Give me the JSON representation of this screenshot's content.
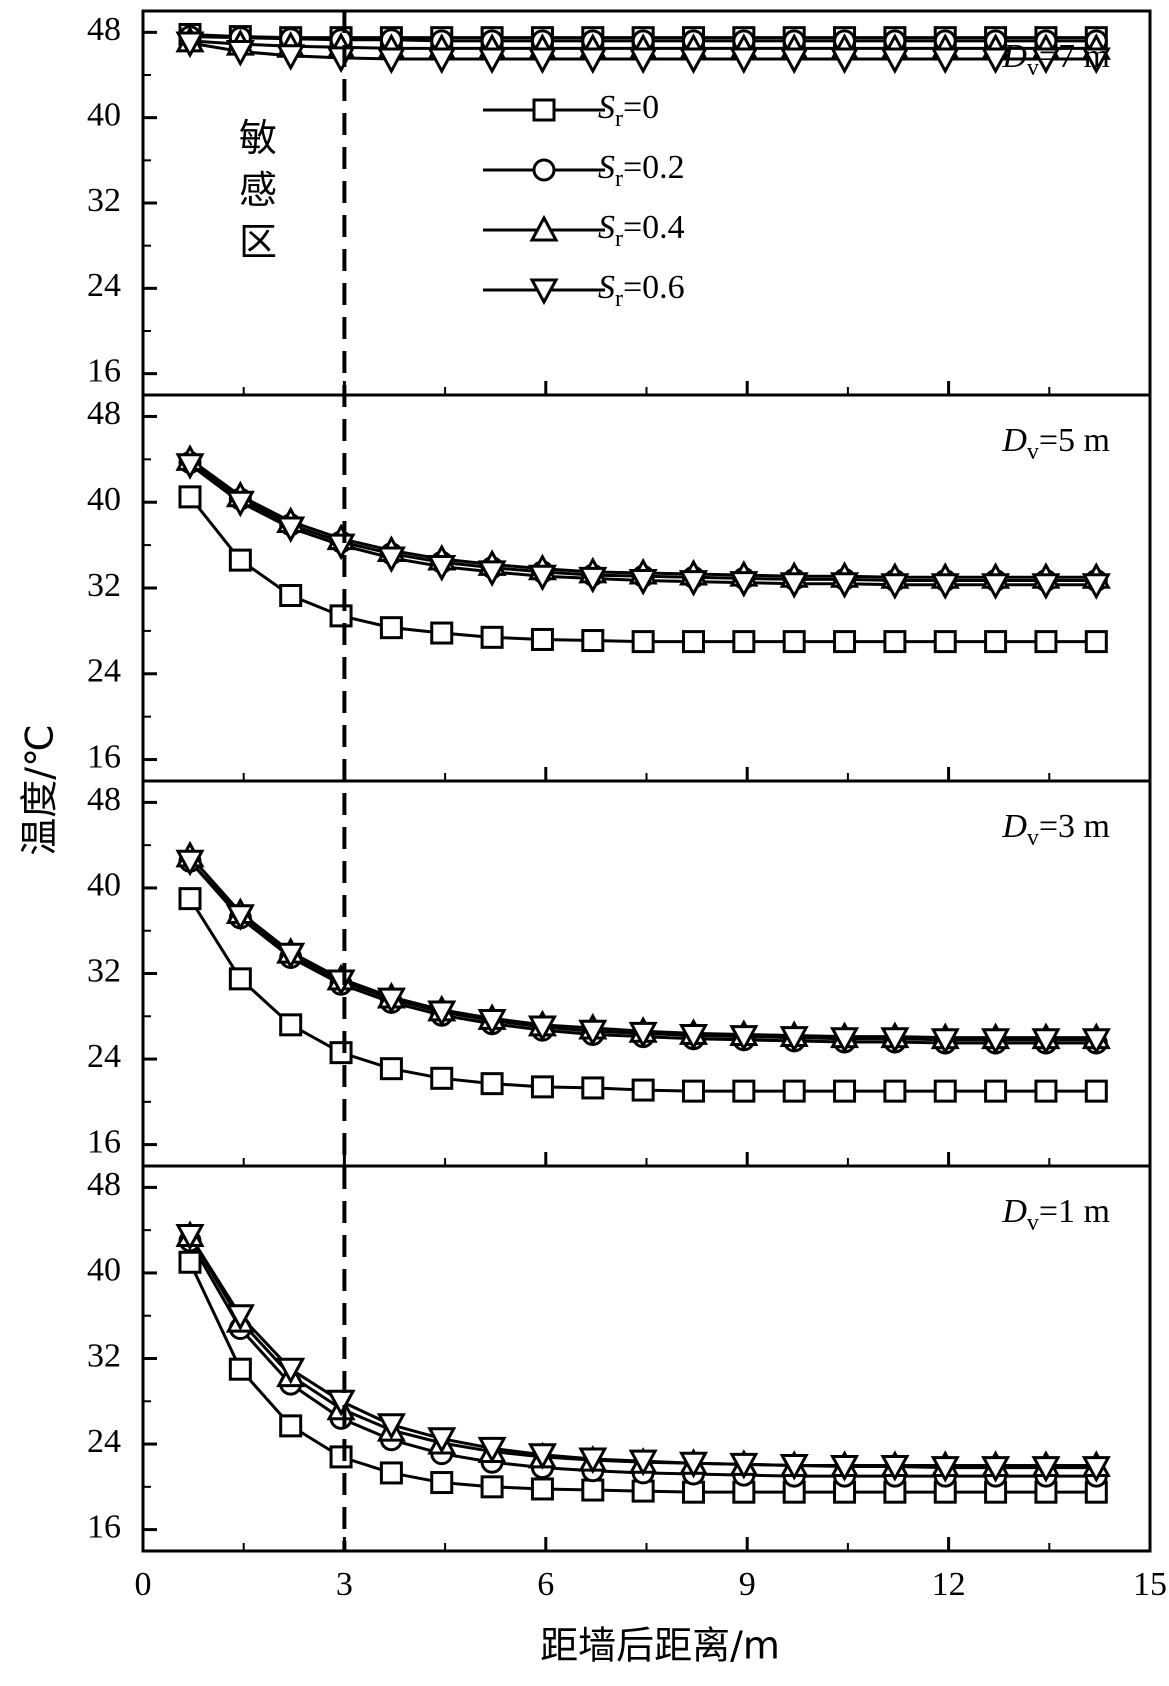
{
  "chart_data": [
    {
      "type": "line",
      "annotation": "Dv=7 m",
      "xlim": [
        0,
        15
      ],
      "xticks": [
        0,
        3,
        6,
        9,
        12,
        15
      ],
      "ylim": [
        14,
        50
      ],
      "yticks": [
        16,
        24,
        32,
        40,
        48
      ],
      "x": [
        0.7,
        1.45,
        2.2,
        2.95,
        3.7,
        4.45,
        5.2,
        5.95,
        6.7,
        7.45,
        8.2,
        8.95,
        9.7,
        10.45,
        11.2,
        11.95,
        12.7,
        13.45,
        14.2
      ],
      "series": [
        {
          "name": "Sr=0",
          "color": "#000000",
          "marker": "square",
          "values": [
            47.8,
            47.6,
            47.5,
            47.5,
            47.5,
            47.5,
            47.5,
            47.5,
            47.5,
            47.5,
            47.5,
            47.5,
            47.5,
            47.5,
            47.5,
            47.5,
            47.5,
            47.5,
            47.5
          ]
        },
        {
          "name": "Sr=0.2",
          "color": "#000000",
          "marker": "circle",
          "values": [
            47.6,
            47.5,
            47.4,
            47.3,
            47.3,
            47.2,
            47.2,
            47.2,
            47.2,
            47.2,
            47.2,
            47.2,
            47.2,
            47.2,
            47.2,
            47.2,
            47.2,
            47.2,
            47.2
          ]
        },
        {
          "name": "Sr=0.4",
          "color": "#000000",
          "marker": "triangle-up",
          "values": [
            47.2,
            46.9,
            46.7,
            46.6,
            46.5,
            46.5,
            46.5,
            46.5,
            46.5,
            46.5,
            46.5,
            46.5,
            46.5,
            46.5,
            46.5,
            46.5,
            46.5,
            46.5,
            46.5
          ]
        },
        {
          "name": "Sr=0.6",
          "color": "#000000",
          "marker": "triangle-down",
          "values": [
            47.0,
            46.2,
            45.8,
            45.6,
            45.5,
            45.5,
            45.5,
            45.5,
            45.5,
            45.5,
            45.5,
            45.5,
            45.5,
            45.5,
            45.5,
            45.5,
            45.5,
            45.5,
            45.5
          ]
        }
      ]
    },
    {
      "type": "line",
      "annotation": "Dv=5 m",
      "xlim": [
        0,
        15
      ],
      "xticks": [
        0,
        3,
        6,
        9,
        12,
        15
      ],
      "ylim": [
        14,
        50
      ],
      "yticks": [
        16,
        24,
        32,
        40,
        48
      ],
      "x": [
        0.7,
        1.45,
        2.2,
        2.95,
        3.7,
        4.45,
        5.2,
        5.95,
        6.7,
        7.45,
        8.2,
        8.95,
        9.7,
        10.45,
        11.2,
        11.95,
        12.7,
        13.45,
        14.2
      ],
      "series": [
        {
          "color": "#000000",
          "marker": "square",
          "values": [
            40.5,
            34.6,
            31.3,
            29.4,
            28.3,
            27.8,
            27.4,
            27.2,
            27.1,
            27.0,
            27.0,
            27.0,
            27.0,
            27.0,
            27.0,
            27.0,
            27.0,
            27.0,
            27.0
          ]
        },
        {
          "color": "#000000",
          "marker": "circle",
          "values": [
            43.7,
            40.3,
            37.9,
            36.3,
            35.2,
            34.4,
            33.9,
            33.5,
            33.2,
            33.1,
            33.0,
            32.9,
            32.8,
            32.8,
            32.7,
            32.7,
            32.7,
            32.7,
            32.7
          ]
        },
        {
          "color": "#000000",
          "marker": "triangle-up",
          "values": [
            44.0,
            40.6,
            38.2,
            36.6,
            35.5,
            34.7,
            34.2,
            33.8,
            33.5,
            33.4,
            33.3,
            33.2,
            33.1,
            33.1,
            33.0,
            33.0,
            33.0,
            33.0,
            33.0
          ]
        },
        {
          "color": "#000000",
          "marker": "triangle-down",
          "values": [
            43.5,
            40.0,
            37.6,
            36.0,
            34.8,
            34.0,
            33.5,
            33.1,
            32.9,
            32.7,
            32.6,
            32.5,
            32.4,
            32.4,
            32.3,
            32.3,
            32.3,
            32.3,
            32.3
          ]
        }
      ]
    },
    {
      "type": "line",
      "annotation": "Dv=3 m",
      "xlim": [
        0,
        15
      ],
      "xticks": [
        0,
        3,
        6,
        9,
        12,
        15
      ],
      "ylim": [
        14,
        50
      ],
      "yticks": [
        16,
        24,
        32,
        40,
        48
      ],
      "x": [
        0.7,
        1.45,
        2.2,
        2.95,
        3.7,
        4.45,
        5.2,
        5.95,
        6.7,
        7.45,
        8.2,
        8.95,
        9.7,
        10.45,
        11.2,
        11.95,
        12.7,
        13.45,
        14.2
      ],
      "series": [
        {
          "color": "#000000",
          "marker": "square",
          "values": [
            39.0,
            31.5,
            27.2,
            24.6,
            23.1,
            22.2,
            21.7,
            21.4,
            21.3,
            21.1,
            21.0,
            21.0,
            21.0,
            21.0,
            21.0,
            21.0,
            21.0,
            21.0,
            21.0
          ]
        },
        {
          "color": "#000000",
          "marker": "circle",
          "values": [
            42.5,
            37.2,
            33.5,
            31.0,
            29.3,
            28.1,
            27.3,
            26.7,
            26.3,
            26.1,
            25.9,
            25.8,
            25.7,
            25.6,
            25.6,
            25.5,
            25.5,
            25.5,
            25.5
          ]
        },
        {
          "color": "#000000",
          "marker": "triangle-up",
          "values": [
            43.0,
            37.7,
            34.0,
            31.5,
            29.8,
            28.6,
            27.8,
            27.2,
            26.9,
            26.6,
            26.4,
            26.3,
            26.2,
            26.1,
            26.1,
            26.0,
            26.0,
            26.0,
            26.0
          ]
        },
        {
          "color": "#000000",
          "marker": "triangle-down",
          "values": [
            42.5,
            37.4,
            33.8,
            31.3,
            29.6,
            28.4,
            27.6,
            27.0,
            26.6,
            26.4,
            26.2,
            26.1,
            26.0,
            25.9,
            25.9,
            25.8,
            25.8,
            25.8,
            25.8
          ]
        }
      ]
    },
    {
      "type": "line",
      "annotation": "Dv=1 m",
      "xlim": [
        0,
        15
      ],
      "xticks": [
        0,
        3,
        6,
        9,
        12,
        15
      ],
      "ylim": [
        14,
        50
      ],
      "yticks": [
        16,
        24,
        32,
        40,
        48
      ],
      "x": [
        0.7,
        1.45,
        2.2,
        2.95,
        3.7,
        4.45,
        5.2,
        5.95,
        6.7,
        7.45,
        8.2,
        8.95,
        9.7,
        10.45,
        11.2,
        11.95,
        12.7,
        13.45,
        14.2
      ],
      "series": [
        {
          "color": "#000000",
          "marker": "square",
          "values": [
            41.0,
            31.0,
            25.7,
            22.8,
            21.3,
            20.4,
            20.0,
            19.8,
            19.7,
            19.6,
            19.5,
            19.5,
            19.5,
            19.5,
            19.5,
            19.5,
            19.5,
            19.5,
            19.5
          ]
        },
        {
          "color": "#000000",
          "marker": "circle",
          "values": [
            43.0,
            34.8,
            29.6,
            26.4,
            24.4,
            23.1,
            22.3,
            21.8,
            21.5,
            21.3,
            21.2,
            21.1,
            21.0,
            21.0,
            21.0,
            21.0,
            21.0,
            21.0,
            21.0
          ]
        },
        {
          "color": "#000000",
          "marker": "triangle-up",
          "values": [
            43.5,
            35.5,
            30.4,
            27.3,
            25.3,
            24.1,
            23.3,
            22.8,
            22.5,
            22.3,
            22.2,
            22.1,
            22.0,
            22.0,
            22.0,
            22.0,
            22.0,
            22.0,
            22.0
          ]
        },
        {
          "color": "#000000",
          "marker": "triangle-down",
          "values": [
            43.5,
            36.0,
            31.0,
            28.0,
            25.8,
            24.5,
            23.6,
            23.0,
            22.6,
            22.4,
            22.2,
            22.1,
            22.0,
            21.9,
            21.9,
            21.8,
            21.8,
            21.8,
            21.8
          ]
        }
      ]
    }
  ],
  "x_label": "距墙后距离/m",
  "y_label": "温度/℃",
  "region_label": "敏感区",
  "vline_x": 3
}
